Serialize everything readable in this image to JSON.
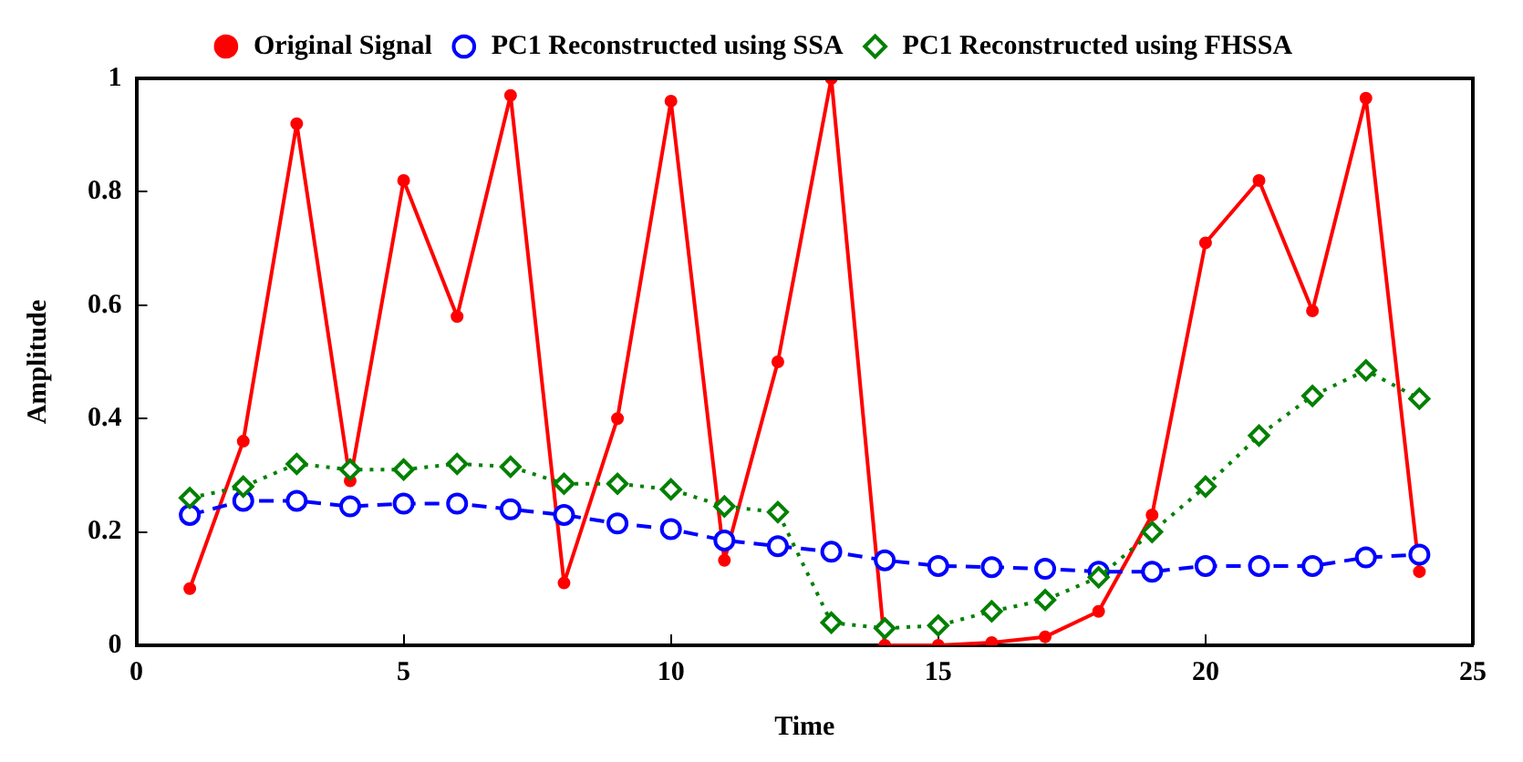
{
  "chart_data": {
    "type": "line",
    "xlabel": "Time",
    "ylabel": "Amplitude",
    "xlim": [
      0,
      25
    ],
    "xticks": [
      0,
      5,
      10,
      15,
      20,
      25
    ],
    "ylim": [
      0,
      1
    ],
    "yticks": [
      0,
      0.2,
      0.4,
      0.6,
      0.8,
      1
    ],
    "grid": false,
    "legend": "top",
    "x": [
      1,
      2,
      3,
      4,
      5,
      6,
      7,
      8,
      9,
      10,
      11,
      12,
      13,
      14,
      15,
      16,
      17,
      18,
      19,
      20,
      21,
      22,
      23,
      24
    ],
    "series": [
      {
        "name": "Original Signal",
        "color": "#ff0000",
        "marker": "circle",
        "line_style": "solid",
        "values": [
          0.1,
          0.36,
          0.92,
          0.29,
          0.82,
          0.58,
          0.97,
          0.11,
          0.4,
          0.96,
          0.15,
          0.5,
          1.0,
          0.0,
          0.0,
          0.005,
          0.015,
          0.06,
          0.23,
          0.71,
          0.82,
          0.59,
          0.965,
          0.13
        ]
      },
      {
        "name": "PC1 Reconstructed using SSA",
        "color": "#0000ff",
        "marker": "circle",
        "line_style": "dashed",
        "values": [
          0.23,
          0.255,
          0.255,
          0.245,
          0.25,
          0.25,
          0.24,
          0.23,
          0.215,
          0.205,
          0.185,
          0.175,
          0.165,
          0.15,
          0.14,
          0.138,
          0.135,
          0.13,
          0.13,
          0.14,
          0.14,
          0.14,
          0.155,
          0.16
        ]
      },
      {
        "name": "PC1 Reconstructed using FHSSA",
        "color": "#008000",
        "marker": "diamond",
        "line_style": "dotted",
        "values": [
          0.26,
          0.28,
          0.32,
          0.31,
          0.31,
          0.32,
          0.315,
          0.285,
          0.285,
          0.275,
          0.245,
          0.235,
          0.04,
          0.03,
          0.035,
          0.06,
          0.08,
          0.12,
          0.2,
          0.28,
          0.37,
          0.44,
          0.485,
          0.435
        ]
      }
    ]
  }
}
